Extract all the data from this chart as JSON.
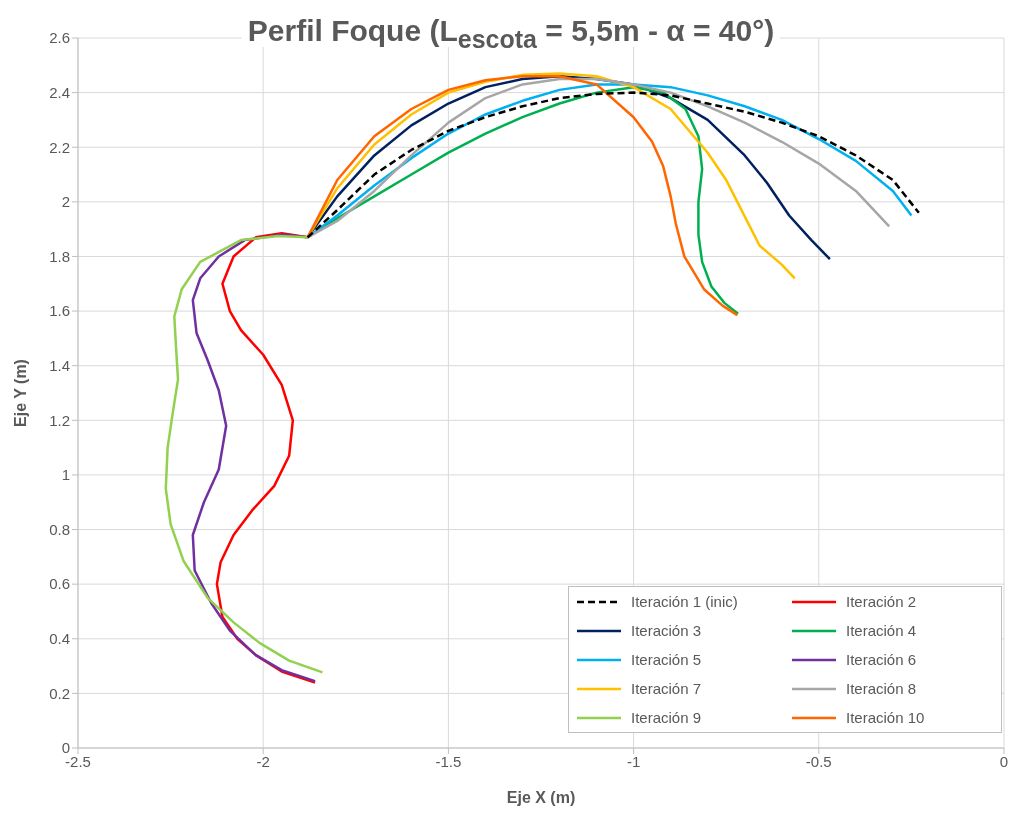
{
  "chart_data": {
    "type": "line",
    "title": "Perfil Foque (L$_{escota}$ = 5,5m - α = 40°)",
    "xlabel": "Eje X (m)",
    "ylabel": "Eje Y (m)",
    "xlim": [
      -2.5,
      0
    ],
    "xticks": [
      -2.5,
      -2,
      -1.5,
      -1,
      -0.5,
      0
    ],
    "ylim": [
      0,
      2.6
    ],
    "yticks": [
      0,
      0.2,
      0.4,
      0.6,
      0.8,
      1,
      1.2,
      1.4,
      1.6,
      1.8,
      2,
      2.2,
      2.4,
      2.6
    ],
    "grid": true,
    "legend": "bottom right",
    "marker": "none",
    "series": [
      {
        "name": "Iteración 1 (inic)",
        "color": "#000000",
        "line_style": "dashed",
        "x": [
          -1.88,
          -1.8,
          -1.7,
          -1.6,
          -1.5,
          -1.4,
          -1.3,
          -1.2,
          -1.1,
          -1.0,
          -0.9,
          -0.8,
          -0.7,
          -0.6,
          -0.5,
          -0.4,
          -0.3,
          -0.23
        ],
        "values": [
          1.87,
          1.97,
          2.1,
          2.19,
          2.26,
          2.31,
          2.35,
          2.38,
          2.395,
          2.4,
          2.39,
          2.36,
          2.33,
          2.29,
          2.24,
          2.17,
          2.08,
          1.96
        ]
      },
      {
        "name": "Iteración 2",
        "color": "#ff0000",
        "line_style": "solid",
        "x": [
          -1.88,
          -1.95,
          -2.02,
          -2.08,
          -2.11,
          -2.09,
          -2.06,
          -2.0,
          -1.95,
          -1.92,
          -1.93,
          -1.97,
          -2.03,
          -2.08,
          -2.115,
          -2.125,
          -2.11,
          -2.07,
          -2.02,
          -1.95,
          -1.86
        ],
        "values": [
          1.87,
          1.885,
          1.87,
          1.8,
          1.7,
          1.6,
          1.53,
          1.44,
          1.33,
          1.2,
          1.07,
          0.96,
          0.87,
          0.78,
          0.68,
          0.6,
          0.48,
          0.4,
          0.34,
          0.28,
          0.24
        ]
      },
      {
        "name": "Iteración 3",
        "color": "#002060",
        "line_style": "solid",
        "x": [
          -1.88,
          -1.8,
          -1.7,
          -1.6,
          -1.5,
          -1.4,
          -1.3,
          -1.2,
          -1.1,
          -1.0,
          -0.9,
          -0.8,
          -0.7,
          -0.64,
          -0.58,
          -0.52,
          -0.47
        ],
        "values": [
          1.87,
          2.02,
          2.17,
          2.28,
          2.36,
          2.42,
          2.45,
          2.46,
          2.45,
          2.43,
          2.38,
          2.3,
          2.17,
          2.07,
          1.95,
          1.86,
          1.79
        ]
      },
      {
        "name": "Iteración 4",
        "color": "#00b050",
        "line_style": "solid",
        "x": [
          -1.88,
          -1.8,
          -1.7,
          -1.6,
          -1.5,
          -1.4,
          -1.3,
          -1.2,
          -1.1,
          -1.0,
          -0.92,
          -0.86,
          -0.825,
          -0.815,
          -0.825,
          -0.825,
          -0.815,
          -0.79,
          -0.755,
          -0.718
        ],
        "values": [
          1.87,
          1.94,
          2.02,
          2.1,
          2.18,
          2.25,
          2.31,
          2.36,
          2.4,
          2.42,
          2.4,
          2.34,
          2.24,
          2.12,
          2.0,
          1.88,
          1.78,
          1.69,
          1.63,
          1.59
        ]
      },
      {
        "name": "Iteración 5",
        "color": "#00b0f0",
        "line_style": "solid",
        "x": [
          -1.88,
          -1.8,
          -1.7,
          -1.6,
          -1.5,
          -1.4,
          -1.3,
          -1.2,
          -1.1,
          -1.0,
          -0.9,
          -0.8,
          -0.7,
          -0.6,
          -0.5,
          -0.4,
          -0.3,
          -0.25
        ],
        "values": [
          1.87,
          1.95,
          2.06,
          2.16,
          2.25,
          2.32,
          2.37,
          2.41,
          2.43,
          2.43,
          2.42,
          2.39,
          2.35,
          2.3,
          2.23,
          2.15,
          2.04,
          1.95
        ]
      },
      {
        "name": "Iteración 6",
        "color": "#7030a0",
        "line_style": "solid",
        "x": [
          -1.88,
          -1.95,
          -2.05,
          -2.12,
          -2.17,
          -2.19,
          -2.18,
          -2.15,
          -2.12,
          -2.1,
          -2.12,
          -2.16,
          -2.19,
          -2.185,
          -2.14,
          -2.09,
          -2.02,
          -1.95,
          -1.86
        ],
        "values": [
          1.87,
          1.88,
          1.86,
          1.8,
          1.72,
          1.64,
          1.52,
          1.42,
          1.31,
          1.18,
          1.02,
          0.9,
          0.78,
          0.65,
          0.53,
          0.43,
          0.34,
          0.285,
          0.245
        ]
      },
      {
        "name": "Iteración 7",
        "color": "#ffc000",
        "line_style": "solid",
        "x": [
          -1.88,
          -1.8,
          -1.7,
          -1.6,
          -1.5,
          -1.4,
          -1.3,
          -1.2,
          -1.1,
          -1.0,
          -0.9,
          -0.8,
          -0.75,
          -0.72,
          -0.66,
          -0.6,
          -0.565
        ],
        "values": [
          1.87,
          2.05,
          2.21,
          2.32,
          2.4,
          2.44,
          2.465,
          2.47,
          2.46,
          2.42,
          2.34,
          2.18,
          2.08,
          2.0,
          1.84,
          1.77,
          1.72
        ]
      },
      {
        "name": "Iteración 8",
        "color": "#a6a6a6",
        "line_style": "solid",
        "x": [
          -1.88,
          -1.8,
          -1.7,
          -1.6,
          -1.5,
          -1.4,
          -1.3,
          -1.2,
          -1.1,
          -1.0,
          -0.9,
          -0.8,
          -0.7,
          -0.6,
          -0.5,
          -0.4,
          -0.31
        ],
        "values": [
          1.87,
          1.93,
          2.04,
          2.17,
          2.29,
          2.38,
          2.43,
          2.45,
          2.45,
          2.43,
          2.4,
          2.35,
          2.29,
          2.22,
          2.14,
          2.04,
          1.91
        ]
      },
      {
        "name": "Iteración 9",
        "color": "#92d050",
        "line_style": "solid",
        "x": [
          -1.88,
          -1.96,
          -2.06,
          -2.17,
          -2.22,
          -2.24,
          -2.235,
          -2.23,
          -2.245,
          -2.258,
          -2.263,
          -2.25,
          -2.215,
          -2.15,
          -2.08,
          -2.01,
          -1.93,
          -1.84
        ],
        "values": [
          1.87,
          1.875,
          1.86,
          1.78,
          1.68,
          1.58,
          1.46,
          1.35,
          1.22,
          1.1,
          0.95,
          0.82,
          0.685,
          0.55,
          0.46,
          0.385,
          0.32,
          0.277
        ]
      },
      {
        "name": "Iteración 10",
        "color": "#ff6600",
        "line_style": "solid",
        "x": [
          -1.88,
          -1.8,
          -1.7,
          -1.6,
          -1.5,
          -1.4,
          -1.3,
          -1.2,
          -1.1,
          -1.0,
          -0.95,
          -0.92,
          -0.9,
          -0.886,
          -0.863,
          -0.81,
          -0.76,
          -0.72
        ],
        "values": [
          1.87,
          2.08,
          2.24,
          2.34,
          2.41,
          2.445,
          2.46,
          2.46,
          2.43,
          2.31,
          2.22,
          2.13,
          2.02,
          1.92,
          1.8,
          1.68,
          1.62,
          1.585
        ]
      }
    ]
  }
}
